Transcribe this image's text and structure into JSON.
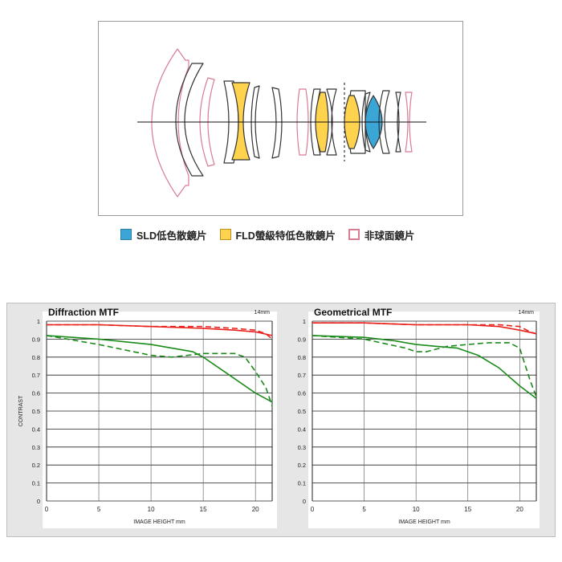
{
  "legend": {
    "sld": {
      "label": "SLD低色散鏡片",
      "color": "#3ba6d6"
    },
    "fld": {
      "label": "FLD螢級特低色散鏡片",
      "color": "#ffd34d"
    },
    "asph": {
      "label": "非球面鏡片",
      "color": "#d97c93"
    }
  },
  "chart_data": [
    {
      "type": "line",
      "title": "Diffraction MTF",
      "annotation": "14mm",
      "xlabel": "IMAGE HEIGHT   mm",
      "ylabel": "CONTRAST",
      "xlim": [
        0,
        21.6
      ],
      "ylim": [
        0,
        1
      ],
      "xticks": [
        "0",
        "5",
        "10",
        "15",
        "20"
      ],
      "yticks": [
        "0",
        "0.1",
        "0.2",
        "0.3",
        "0.4",
        "0.5",
        "0.6",
        "0.7",
        "0.8",
        "0.9",
        "1"
      ],
      "grid": true,
      "series": [
        {
          "color": "#e8211c",
          "dash": false,
          "x": [
            0,
            5,
            10,
            15,
            18,
            20,
            21.6
          ],
          "y": [
            0.98,
            0.98,
            0.97,
            0.96,
            0.95,
            0.94,
            0.92
          ]
        },
        {
          "color": "#e8211c",
          "dash": true,
          "x": [
            0,
            5,
            10,
            15,
            18,
            20,
            21,
            21.6
          ],
          "y": [
            0.98,
            0.98,
            0.97,
            0.97,
            0.96,
            0.95,
            0.93,
            0.9
          ]
        },
        {
          "color": "#1a8a1a",
          "dash": false,
          "x": [
            0,
            5,
            10,
            14,
            15,
            17,
            20,
            21.6
          ],
          "y": [
            0.92,
            0.9,
            0.87,
            0.83,
            0.8,
            0.72,
            0.6,
            0.55
          ]
        },
        {
          "color": "#1a8a1a",
          "dash": true,
          "x": [
            0,
            5,
            10,
            12,
            15,
            18,
            19,
            20,
            21,
            21.6
          ],
          "y": [
            0.92,
            0.87,
            0.81,
            0.8,
            0.82,
            0.82,
            0.8,
            0.72,
            0.63,
            0.53
          ]
        }
      ]
    },
    {
      "type": "line",
      "title": "Geometrical MTF",
      "annotation": "14mm",
      "xlabel": "IMAGE HEIGHT   mm",
      "ylabel": "",
      "xlim": [
        0,
        21.6
      ],
      "ylim": [
        0,
        1
      ],
      "xticks": [
        "0",
        "5",
        "10",
        "15",
        "20"
      ],
      "yticks": [
        "0",
        "0.1",
        "0.2",
        "0.3",
        "0.4",
        "0.5",
        "0.6",
        "0.7",
        "0.8",
        "0.9",
        "1"
      ],
      "grid": true,
      "series": [
        {
          "color": "#e8211c",
          "dash": false,
          "x": [
            0,
            5,
            10,
            15,
            18,
            20,
            21.6
          ],
          "y": [
            0.99,
            0.99,
            0.98,
            0.98,
            0.97,
            0.95,
            0.93
          ]
        },
        {
          "color": "#e8211c",
          "dash": true,
          "x": [
            0,
            5,
            10,
            15,
            18,
            20,
            21,
            21.6
          ],
          "y": [
            0.99,
            0.99,
            0.98,
            0.98,
            0.98,
            0.97,
            0.94,
            0.93
          ]
        },
        {
          "color": "#1a8a1a",
          "dash": false,
          "x": [
            0,
            5,
            8,
            10,
            12,
            14,
            16,
            18,
            20,
            21.6
          ],
          "y": [
            0.92,
            0.91,
            0.89,
            0.87,
            0.86,
            0.85,
            0.81,
            0.74,
            0.64,
            0.57
          ]
        },
        {
          "color": "#1a8a1a",
          "dash": true,
          "x": [
            0,
            5,
            9,
            10,
            11,
            13,
            15,
            17,
            19,
            20,
            21,
            21.6
          ],
          "y": [
            0.92,
            0.9,
            0.85,
            0.83,
            0.83,
            0.86,
            0.87,
            0.88,
            0.88,
            0.85,
            0.67,
            0.58
          ]
        }
      ]
    }
  ]
}
